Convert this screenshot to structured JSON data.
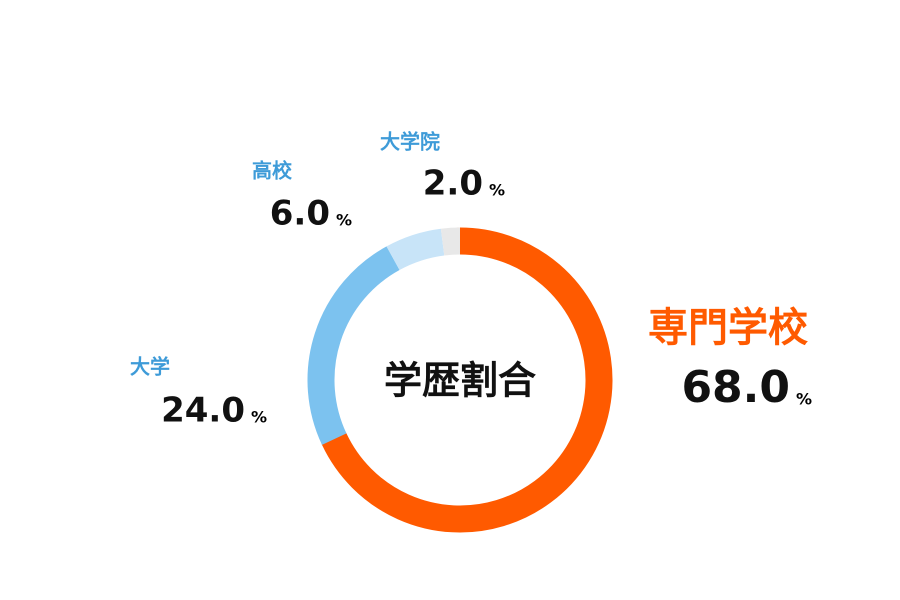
{
  "chart_data": {
    "type": "pie",
    "title": "学歴割合",
    "unit": "%",
    "categories": [
      "専門学校",
      "大学",
      "高校",
      "大学院"
    ],
    "values": [
      68,
      24,
      6,
      2
    ],
    "value_labels": [
      "68.0",
      "24.0",
      "6.0",
      "2.0"
    ],
    "colors": [
      "#ff5a00",
      "#7cc2ef",
      "#c8e4f8",
      "#e8e8e8"
    ],
    "donut": true
  }
}
